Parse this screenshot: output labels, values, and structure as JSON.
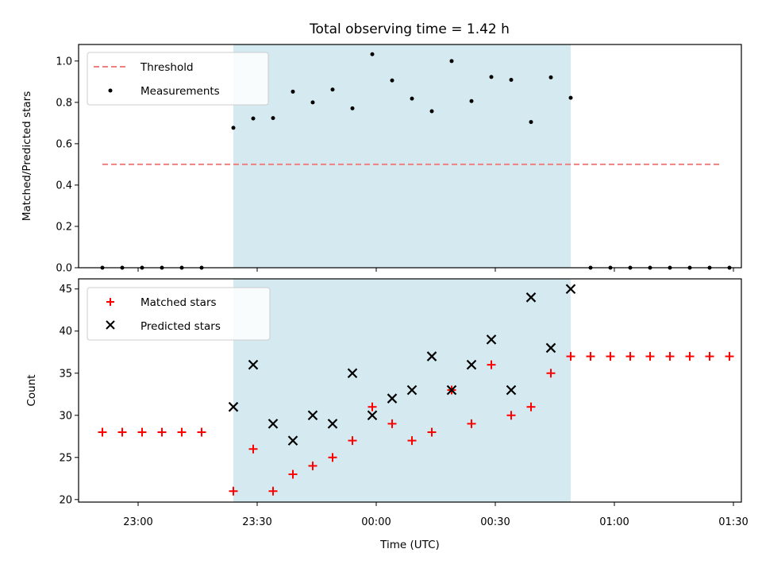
{
  "chart_data": [
    {
      "type": "scatter",
      "title": "Total observing time = 1.42 h",
      "xlabel": "",
      "ylabel": "Matched/Predicted stars",
      "ylim": [
        0,
        1.08
      ],
      "yticks": [
        0.0,
        0.2,
        0.4,
        0.6,
        0.8,
        1.0
      ],
      "ytick_labels": [
        "0.0",
        "0.2",
        "0.4",
        "0.6",
        "0.8",
        "1.0"
      ],
      "shaded_interval": [
        "23:24",
        "00:49"
      ],
      "shade_color": "#d4eaf0",
      "legend_position": "upper left",
      "x": [
        "22:51",
        "22:56",
        "23:01",
        "23:06",
        "23:11",
        "23:16",
        "23:24",
        "23:29",
        "23:34",
        "23:39",
        "23:44",
        "23:49",
        "23:54",
        "23:59",
        "00:04",
        "00:09",
        "00:14",
        "00:19",
        "00:24",
        "00:29",
        "00:34",
        "00:39",
        "00:44",
        "00:49",
        "00:54",
        "00:59",
        "01:04",
        "01:09",
        "01:14",
        "01:19",
        "01:24",
        "01:29"
      ],
      "series": [
        {
          "name": "Threshold",
          "kind": "line",
          "color": "#f08080",
          "style": "dashed",
          "x": [
            "22:51",
            "01:27"
          ],
          "values": [
            0.5,
            0.5
          ]
        },
        {
          "name": "Measurements",
          "kind": "scatter",
          "color": "#000000",
          "marker": "dot",
          "values": [
            0,
            0,
            0,
            0,
            0,
            0,
            0.677,
            0.722,
            0.724,
            0.852,
            0.8,
            0.862,
            0.771,
            1.033,
            0.906,
            0.818,
            0.757,
            1.0,
            0.806,
            0.923,
            0.909,
            0.705,
            0.921,
            0.822,
            0,
            0,
            0,
            0,
            0,
            0,
            0,
            0
          ]
        }
      ]
    },
    {
      "type": "scatter",
      "title": "",
      "xlabel": "Time (UTC)",
      "ylabel": "Count",
      "ylim": [
        19.7,
        46.2
      ],
      "yticks": [
        20,
        25,
        30,
        35,
        40,
        45
      ],
      "ytick_labels": [
        "20",
        "25",
        "30",
        "35",
        "40",
        "45"
      ],
      "xticks": [
        "23:00",
        "23:30",
        "00:00",
        "00:30",
        "01:00",
        "01:30"
      ],
      "shaded_interval": [
        "23:24",
        "00:49"
      ],
      "shade_color": "#d4eaf0",
      "legend_position": "upper left",
      "series": [
        {
          "name": "Matched stars",
          "kind": "scatter",
          "color": "#ff0000",
          "marker": "plus",
          "x": [
            "22:51",
            "22:56",
            "23:01",
            "23:06",
            "23:11",
            "23:16",
            "23:24",
            "23:29",
            "23:34",
            "23:39",
            "23:44",
            "23:49",
            "23:54",
            "23:59",
            "00:04",
            "00:09",
            "00:14",
            "00:19",
            "00:24",
            "00:29",
            "00:34",
            "00:39",
            "00:44",
            "00:49",
            "00:54",
            "00:59",
            "01:04",
            "01:09",
            "01:14",
            "01:19",
            "01:24",
            "01:29"
          ],
          "values": [
            28,
            28,
            28,
            28,
            28,
            28,
            21,
            26,
            21,
            23,
            24,
            25,
            27,
            31,
            29,
            27,
            28,
            33,
            29,
            36,
            30,
            31,
            35,
            37,
            37,
            37,
            37,
            37,
            37,
            37,
            37,
            37
          ]
        },
        {
          "name": "Predicted stars",
          "kind": "scatter",
          "color": "#000000",
          "marker": "x",
          "x": [
            "23:24",
            "23:29",
            "23:34",
            "23:39",
            "23:44",
            "23:49",
            "23:54",
            "23:59",
            "00:04",
            "00:09",
            "00:14",
            "00:19",
            "00:24",
            "00:29",
            "00:34",
            "00:39",
            "00:44",
            "00:49"
          ],
          "values": [
            31,
            36,
            29,
            27,
            30,
            29,
            35,
            30,
            32,
            33,
            37,
            33,
            36,
            39,
            33,
            44,
            38,
            45
          ]
        }
      ]
    }
  ]
}
